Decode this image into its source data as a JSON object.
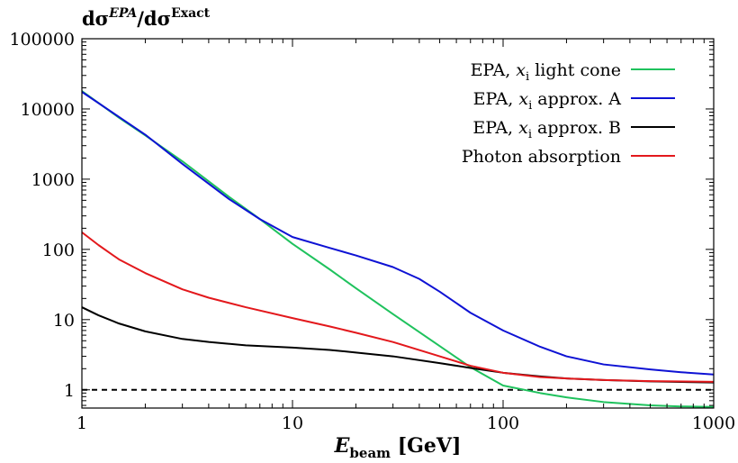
{
  "chart_data": {
    "type": "line",
    "x_scale": "log",
    "y_scale": "log",
    "xlim": [
      1,
      1000
    ],
    "ylim": [
      0.55,
      100000
    ],
    "grid": false,
    "legend_position": "top-right",
    "xlabel_main": "E",
    "xlabel_sub": "beam",
    "xlabel_unit": " [GeV]",
    "ylabel_num": "dσ",
    "ylabel_num_sup": "EPA",
    "ylabel_den": "/dσ",
    "ylabel_den_sup": "Exact",
    "xticks": [
      {
        "value": 1,
        "label": "1"
      },
      {
        "value": 10,
        "label": "10"
      },
      {
        "value": 100,
        "label": "100"
      },
      {
        "value": 1000,
        "label": "1000"
      }
    ],
    "yticks": [
      {
        "value": 1,
        "label": "1"
      },
      {
        "value": 10,
        "label": "10"
      },
      {
        "value": 100,
        "label": "100"
      },
      {
        "value": 1000,
        "label": "1000"
      },
      {
        "value": 10000,
        "label": "10000"
      },
      {
        "value": 100000,
        "label": "100000"
      }
    ],
    "reference_line": {
      "y": 1,
      "style": "dashed",
      "color": "#000000"
    },
    "series": [
      {
        "name": "EPA, x_i light cone",
        "legend_pre": "EPA, ",
        "legend_var": "x",
        "legend_sub": "i",
        "legend_post": " light cone",
        "color": "#1fc25d",
        "x": [
          1,
          1.5,
          2,
          3,
          5,
          7,
          10,
          15,
          20,
          30,
          50,
          70,
          100,
          150,
          200,
          300,
          500,
          700,
          1000
        ],
        "y": [
          18000,
          7500,
          4200,
          1800,
          560,
          270,
          120,
          52,
          28,
          12,
          4.2,
          2.1,
          1.15,
          0.9,
          0.78,
          0.67,
          0.6,
          0.58,
          0.57
        ]
      },
      {
        "name": "EPA, x_i approx. A",
        "legend_pre": "EPA, ",
        "legend_var": "x",
        "legend_sub": "i",
        "legend_post": " approx. A",
        "color": "#0e12d4",
        "x": [
          1,
          1.5,
          2,
          3,
          5,
          7,
          10,
          15,
          20,
          30,
          40,
          50,
          70,
          100,
          150,
          200,
          300,
          500,
          700,
          1000
        ],
        "y": [
          17500,
          7700,
          4300,
          1650,
          520,
          270,
          150,
          105,
          82,
          56,
          38,
          25,
          12.5,
          7,
          4.1,
          3.0,
          2.3,
          1.95,
          1.78,
          1.65
        ]
      },
      {
        "name": "EPA, x_i approx. B",
        "legend_pre": "EPA, ",
        "legend_var": "x",
        "legend_sub": "i",
        "legend_post": " approx. B",
        "color": "#000000",
        "x": [
          1,
          1.2,
          1.5,
          2,
          3,
          4,
          6,
          10,
          15,
          20,
          30,
          50,
          70,
          100,
          150,
          200,
          300,
          500,
          1000
        ],
        "y": [
          15,
          11.5,
          8.8,
          6.8,
          5.3,
          4.8,
          4.3,
          4.0,
          3.7,
          3.4,
          3.0,
          2.4,
          2.05,
          1.75,
          1.55,
          1.45,
          1.38,
          1.32,
          1.27
        ]
      },
      {
        "name": "Photon absorption",
        "legend_pre": "Photon absorption",
        "legend_var": "",
        "legend_sub": "",
        "legend_post": "",
        "color": "#e3181c",
        "x": [
          1,
          1.2,
          1.5,
          2,
          3,
          4,
          6,
          10,
          15,
          20,
          30,
          50,
          70,
          100,
          150,
          200,
          300,
          500,
          1000
        ],
        "y": [
          175,
          115,
          72,
          46,
          27,
          20.5,
          15,
          10.5,
          8,
          6.5,
          4.8,
          3.0,
          2.2,
          1.75,
          1.52,
          1.45,
          1.38,
          1.33,
          1.3
        ]
      }
    ]
  }
}
